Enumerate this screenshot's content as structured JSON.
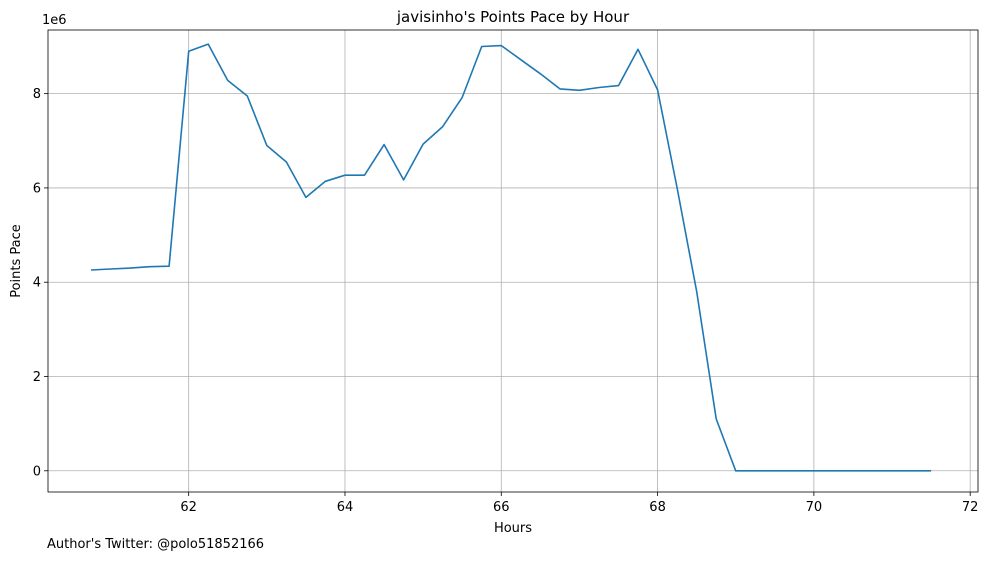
{
  "chart_data": {
    "type": "line",
    "title": "javisinho's Points Pace by Hour",
    "xlabel": "Hours",
    "ylabel": "Points Pace",
    "y_scale_label": "1e6",
    "xlim": [
      60.2,
      72.1
    ],
    "ylim": [
      -450000,
      9350000
    ],
    "x_ticks": [
      62,
      64,
      66,
      68,
      70,
      72
    ],
    "y_ticks": [
      0,
      2000000,
      4000000,
      6000000,
      8000000
    ],
    "x_tick_labels": [
      "62",
      "64",
      "66",
      "68",
      "70",
      "72"
    ],
    "y_tick_labels": [
      "0",
      "2",
      "4",
      "6",
      "8"
    ],
    "grid": true,
    "line_color": "#1f77b4",
    "series": [
      {
        "x": [
          60.75,
          61.0,
          61.25,
          61.5,
          61.75,
          62.0,
          62.25,
          62.5,
          62.75,
          63.0,
          63.25,
          63.5,
          63.75,
          64.0,
          64.25,
          64.5,
          64.75,
          65.0,
          65.25,
          65.5,
          65.75,
          66.0,
          66.25,
          66.5,
          66.75,
          67.0,
          67.25,
          67.5,
          67.75,
          68.0,
          68.25,
          68.5,
          68.75,
          69.0,
          69.25,
          69.5,
          69.75,
          70.0,
          70.25,
          70.5,
          70.75,
          71.0,
          71.25,
          71.5
        ],
        "y": [
          4260000,
          4280000,
          4300000,
          4330000,
          4340000,
          8900000,
          9050000,
          8280000,
          7950000,
          6900000,
          6550000,
          5800000,
          6140000,
          6270000,
          6270000,
          6920000,
          6170000,
          6930000,
          7300000,
          7920000,
          9000000,
          9020000,
          8720000,
          8420000,
          8100000,
          8070000,
          8130000,
          8170000,
          8940000,
          8080000,
          6000000,
          3800000,
          1100000,
          0,
          0,
          0,
          0,
          0,
          0,
          0,
          0,
          0,
          0,
          0
        ]
      }
    ]
  },
  "footer": {
    "credit": "Author's Twitter: @polo51852166"
  }
}
